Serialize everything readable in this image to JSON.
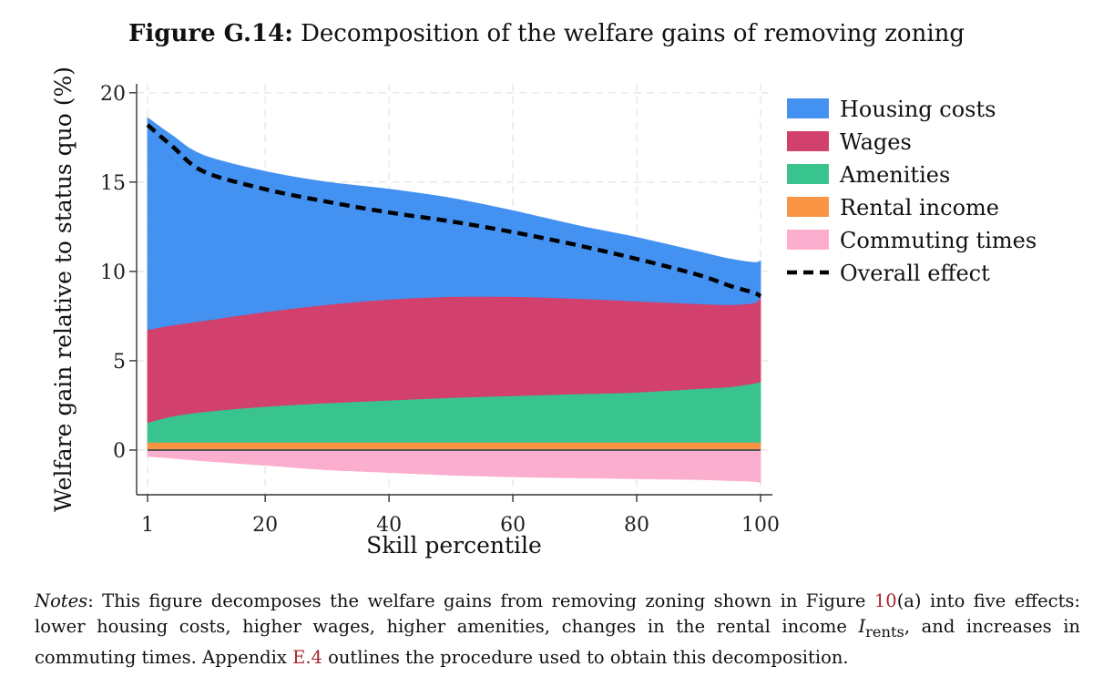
{
  "figure": {
    "label": "Figure G.14:",
    "title": "Decomposition of the welfare gains of removing zoning"
  },
  "chart_data": {
    "type": "area",
    "title": "Decomposition of the welfare gains of removing zoning",
    "xlabel": "Skill percentile",
    "ylabel": "Welfare gain relative to status quo (%)",
    "xlim": [
      1,
      100
    ],
    "ylim": [
      -2.5,
      20.5
    ],
    "xticks": [
      1,
      20,
      40,
      60,
      80,
      100
    ],
    "yticks": [
      0,
      5,
      10,
      15,
      20
    ],
    "grid": true,
    "legend_position": "right",
    "x": [
      1,
      5,
      10,
      20,
      30,
      40,
      50,
      60,
      70,
      80,
      90,
      95,
      99,
      100
    ],
    "series": [
      {
        "name": "Housing costs",
        "color": "#4391f1",
        "lower": [
          6.7,
          6.95,
          7.2,
          7.7,
          8.1,
          8.4,
          8.55,
          8.55,
          8.45,
          8.3,
          8.15,
          8.1,
          8.2,
          8.5
        ],
        "upper": [
          18.6,
          17.6,
          16.5,
          15.6,
          15.0,
          14.6,
          14.1,
          13.4,
          12.6,
          11.9,
          11.1,
          10.7,
          10.5,
          10.6
        ]
      },
      {
        "name": "Wages",
        "color": "#d2406d",
        "lower": [
          1.5,
          1.85,
          2.1,
          2.4,
          2.6,
          2.75,
          2.9,
          3.0,
          3.1,
          3.2,
          3.4,
          3.5,
          3.7,
          3.8
        ],
        "upper": [
          6.7,
          6.95,
          7.2,
          7.7,
          8.1,
          8.4,
          8.55,
          8.55,
          8.45,
          8.3,
          8.15,
          8.1,
          8.2,
          8.5
        ]
      },
      {
        "name": "Amenities",
        "color": "#39c48f",
        "lower": [
          0.4,
          0.4,
          0.4,
          0.4,
          0.4,
          0.4,
          0.4,
          0.4,
          0.4,
          0.4,
          0.4,
          0.4,
          0.4,
          0.4
        ],
        "upper": [
          1.5,
          1.85,
          2.1,
          2.4,
          2.6,
          2.75,
          2.9,
          3.0,
          3.1,
          3.2,
          3.4,
          3.5,
          3.7,
          3.8
        ]
      },
      {
        "name": "Rental income",
        "color": "#f99445",
        "lower": [
          0.0,
          0.0,
          0.0,
          0.0,
          0.0,
          0.0,
          0.0,
          0.0,
          0.0,
          0.0,
          0.0,
          0.0,
          0.0,
          0.0
        ],
        "upper": [
          0.4,
          0.4,
          0.4,
          0.4,
          0.4,
          0.4,
          0.4,
          0.4,
          0.4,
          0.4,
          0.4,
          0.4,
          0.4,
          0.4
        ]
      },
      {
        "name": "Commuting times",
        "color": "#fbaecd",
        "lower": [
          -0.35,
          -0.45,
          -0.6,
          -0.85,
          -1.1,
          -1.25,
          -1.4,
          -1.5,
          -1.55,
          -1.6,
          -1.65,
          -1.7,
          -1.75,
          -1.8
        ],
        "upper": [
          0.0,
          0.0,
          0.0,
          0.0,
          0.0,
          0.0,
          0.0,
          0.0,
          0.0,
          0.0,
          0.0,
          0.0,
          0.0,
          0.0
        ]
      }
    ],
    "overall": {
      "name": "Overall effect",
      "color": "#000000",
      "values": [
        18.2,
        17.0,
        15.6,
        14.6,
        13.9,
        13.3,
        12.8,
        12.2,
        11.5,
        10.7,
        9.8,
        9.2,
        8.8,
        8.6
      ]
    }
  },
  "notes": {
    "label": "Notes",
    "text_1": ": This figure decomposes the welfare gains from removing zoning shown in Figure ",
    "ref_1": "10",
    "text_2": "(a) into five effects: lower housing costs, higher wages, higher amenities, changes in the rental income ",
    "var": "I",
    "var_sub": "rents",
    "text_3": ", and increases in commuting times. Appendix ",
    "ref_2": "E.4",
    "text_4": " outlines the procedure used to obtain this decomposition."
  }
}
